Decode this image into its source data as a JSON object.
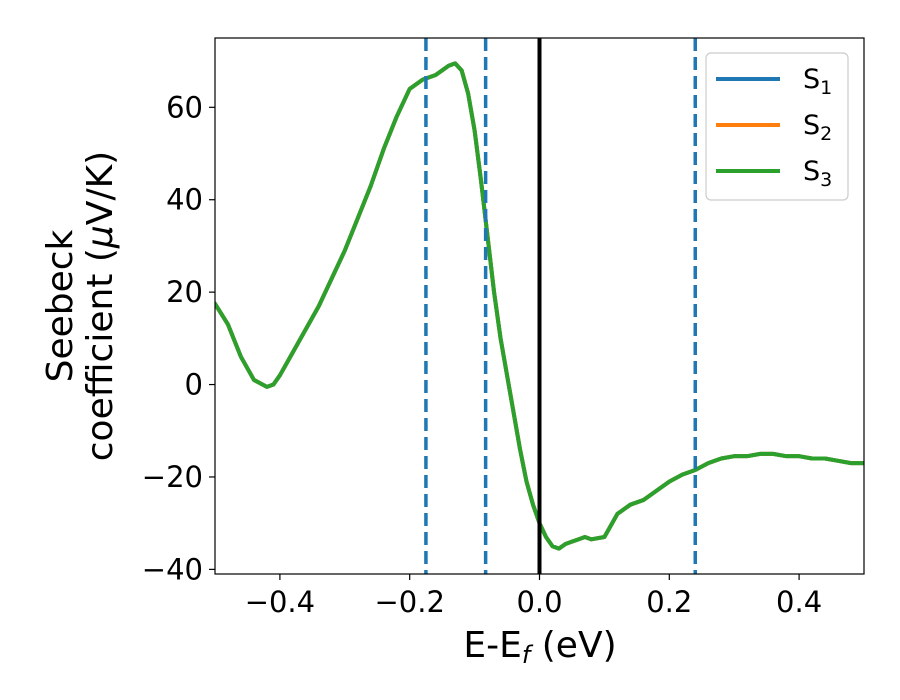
{
  "chart_data": {
    "type": "line",
    "xlabel": "E-E",
    "xlabel_sub": "f",
    "xlabel_unit": " (eV)",
    "ylabel_line1": "Seebeck",
    "ylabel_line2_pre": "coefficient  (",
    "ylabel_mu": "μ",
    "ylabel_line2_post": "V/K)",
    "xlim": [
      -0.5,
      0.5
    ],
    "ylim": [
      -41,
      75
    ],
    "xticks": [
      -0.4,
      -0.2,
      0.0,
      0.2,
      0.4
    ],
    "xtick_labels": [
      "−0.4",
      "−0.2",
      "0.0",
      "0.2",
      "0.4"
    ],
    "yticks": [
      -40,
      -20,
      0,
      20,
      40,
      60
    ],
    "ytick_labels": [
      "−40",
      "−20",
      "0",
      "20",
      "40",
      "60"
    ],
    "grid": false,
    "legend_position": "top-right",
    "vlines": [
      {
        "x": -0.175,
        "style": "dashed",
        "color": "#1f77b4"
      },
      {
        "x": -0.083,
        "style": "dashed",
        "color": "#1f77b4"
      },
      {
        "x": 0.0,
        "style": "solid",
        "color": "#000000"
      },
      {
        "x": 0.24,
        "style": "dashed",
        "color": "#1f77b4"
      }
    ],
    "series": [
      {
        "name": "S",
        "sub": "1",
        "color": "#1f77b4",
        "x": [
          -0.5,
          -0.48,
          -0.46,
          -0.44,
          -0.42,
          -0.41,
          -0.4,
          -0.38,
          -0.36,
          -0.34,
          -0.32,
          -0.3,
          -0.28,
          -0.26,
          -0.24,
          -0.22,
          -0.2,
          -0.18,
          -0.16,
          -0.14,
          -0.13,
          -0.12,
          -0.11,
          -0.1,
          -0.09,
          -0.08,
          -0.07,
          -0.06,
          -0.05,
          -0.04,
          -0.03,
          -0.02,
          -0.01,
          0.0,
          0.01,
          0.02,
          0.03,
          0.04,
          0.05,
          0.06,
          0.07,
          0.08,
          0.1,
          0.12,
          0.14,
          0.16,
          0.18,
          0.2,
          0.22,
          0.24,
          0.26,
          0.28,
          0.3,
          0.32,
          0.34,
          0.36,
          0.38,
          0.4,
          0.42,
          0.44,
          0.46,
          0.48,
          0.5
        ],
        "values": [
          17.5,
          13,
          6,
          1,
          -0.5,
          0,
          2,
          7,
          12,
          17,
          23,
          29,
          36,
          43,
          51,
          58,
          64,
          66,
          67,
          69,
          69.5,
          68,
          63,
          55,
          44,
          32,
          20,
          10,
          2,
          -6,
          -14,
          -21,
          -26,
          -30,
          -33,
          -35,
          -35.5,
          -34.5,
          -34,
          -33.5,
          -33,
          -33.5,
          -33,
          -28,
          -26,
          -25,
          -23,
          -21,
          -19.5,
          -18.5,
          -17,
          -16,
          -15.5,
          -15.5,
          -15,
          -15,
          -15.5,
          -15.5,
          -16,
          -16,
          -16.5,
          -17,
          -17
        ]
      },
      {
        "name": "S",
        "sub": "2",
        "color": "#ff7f0e",
        "x": [
          -0.5,
          -0.48,
          -0.46,
          -0.44,
          -0.42,
          -0.41,
          -0.4,
          -0.38,
          -0.36,
          -0.34,
          -0.32,
          -0.3,
          -0.28,
          -0.26,
          -0.24,
          -0.22,
          -0.2,
          -0.18,
          -0.16,
          -0.14,
          -0.13,
          -0.12,
          -0.11,
          -0.1,
          -0.09,
          -0.08,
          -0.07,
          -0.06,
          -0.05,
          -0.04,
          -0.03,
          -0.02,
          -0.01,
          0.0,
          0.01,
          0.02,
          0.03,
          0.04,
          0.05,
          0.06,
          0.07,
          0.08,
          0.1,
          0.12,
          0.14,
          0.16,
          0.18,
          0.2,
          0.22,
          0.24,
          0.26,
          0.28,
          0.3,
          0.32,
          0.34,
          0.36,
          0.38,
          0.4,
          0.42,
          0.44,
          0.46,
          0.48,
          0.5
        ],
        "values": [
          17.5,
          13,
          6,
          1,
          -0.5,
          0,
          2,
          7,
          12,
          17,
          23,
          29,
          36,
          43,
          51,
          58,
          64,
          66,
          67,
          69,
          69.5,
          68,
          63,
          55,
          44,
          32,
          20,
          10,
          2,
          -6,
          -14,
          -21,
          -26,
          -30,
          -33,
          -35,
          -35.5,
          -34.5,
          -34,
          -33.5,
          -33,
          -33.5,
          -33,
          -28,
          -26,
          -25,
          -23,
          -21,
          -19.5,
          -18.5,
          -17,
          -16,
          -15.5,
          -15.5,
          -15,
          -15,
          -15.5,
          -15.5,
          -16,
          -16,
          -16.5,
          -17,
          -17
        ]
      },
      {
        "name": "S",
        "sub": "3",
        "color": "#2ca02c",
        "x": [
          -0.5,
          -0.48,
          -0.46,
          -0.44,
          -0.42,
          -0.41,
          -0.4,
          -0.38,
          -0.36,
          -0.34,
          -0.32,
          -0.3,
          -0.28,
          -0.26,
          -0.24,
          -0.22,
          -0.2,
          -0.18,
          -0.16,
          -0.14,
          -0.13,
          -0.12,
          -0.11,
          -0.1,
          -0.09,
          -0.08,
          -0.07,
          -0.06,
          -0.05,
          -0.04,
          -0.03,
          -0.02,
          -0.01,
          0.0,
          0.01,
          0.02,
          0.03,
          0.04,
          0.05,
          0.06,
          0.07,
          0.08,
          0.1,
          0.12,
          0.14,
          0.16,
          0.18,
          0.2,
          0.22,
          0.24,
          0.26,
          0.28,
          0.3,
          0.32,
          0.34,
          0.36,
          0.38,
          0.4,
          0.42,
          0.44,
          0.46,
          0.48,
          0.5
        ],
        "values": [
          17.5,
          13,
          6,
          1,
          -0.5,
          0,
          2,
          7,
          12,
          17,
          23,
          29,
          36,
          43,
          51,
          58,
          64,
          66,
          67,
          69,
          69.5,
          68,
          63,
          55,
          44,
          32,
          20,
          10,
          2,
          -6,
          -14,
          -21,
          -26,
          -30,
          -33,
          -35,
          -35.5,
          -34.5,
          -34,
          -33.5,
          -33,
          -33.5,
          -33,
          -28,
          -26,
          -25,
          -23,
          -21,
          -19.5,
          -18.5,
          -17,
          -16,
          -15.5,
          -15.5,
          -15,
          -15,
          -15.5,
          -15.5,
          -16,
          -16,
          -16.5,
          -17,
          -17
        ]
      }
    ]
  }
}
